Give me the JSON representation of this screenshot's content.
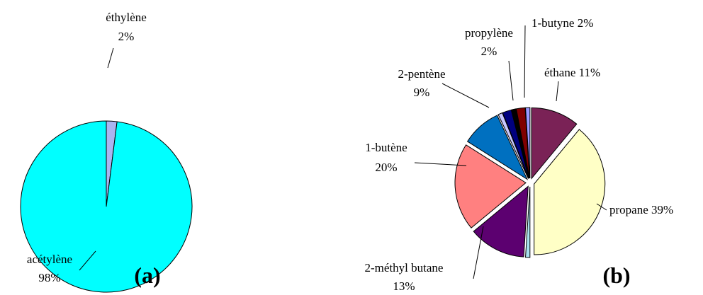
{
  "chart_data": [
    {
      "type": "pie",
      "title": "(a)",
      "categories": [
        "éthylène",
        "acétylène"
      ],
      "values": [
        2,
        98
      ],
      "value_labels": [
        "2%",
        "98%"
      ],
      "colors": [
        "#aab4f0",
        "#00ffff"
      ],
      "explode": false
    },
    {
      "type": "pie",
      "title": "(b)",
      "categories": [
        "éthane",
        "propane",
        null,
        "2-méthyl butane",
        "1-butène",
        "2-pentène",
        null,
        "propylène",
        null,
        "1-butyne",
        null
      ],
      "values": [
        11,
        39,
        1,
        13,
        20,
        9,
        1,
        2,
        1,
        2,
        1
      ],
      "value_labels": [
        "11%",
        "39%",
        null,
        "13%",
        "20%",
        "9%",
        null,
        "2%",
        null,
        "2%",
        null
      ],
      "colors": [
        "#7a2256",
        "#ffffc6",
        "#a8e0f0",
        "#5c0070",
        "#ff8080",
        "#0070c0",
        "#c8c8ff",
        "#000080",
        "#000000",
        "#800000",
        "#9999ff"
      ],
      "explode": true
    }
  ]
}
